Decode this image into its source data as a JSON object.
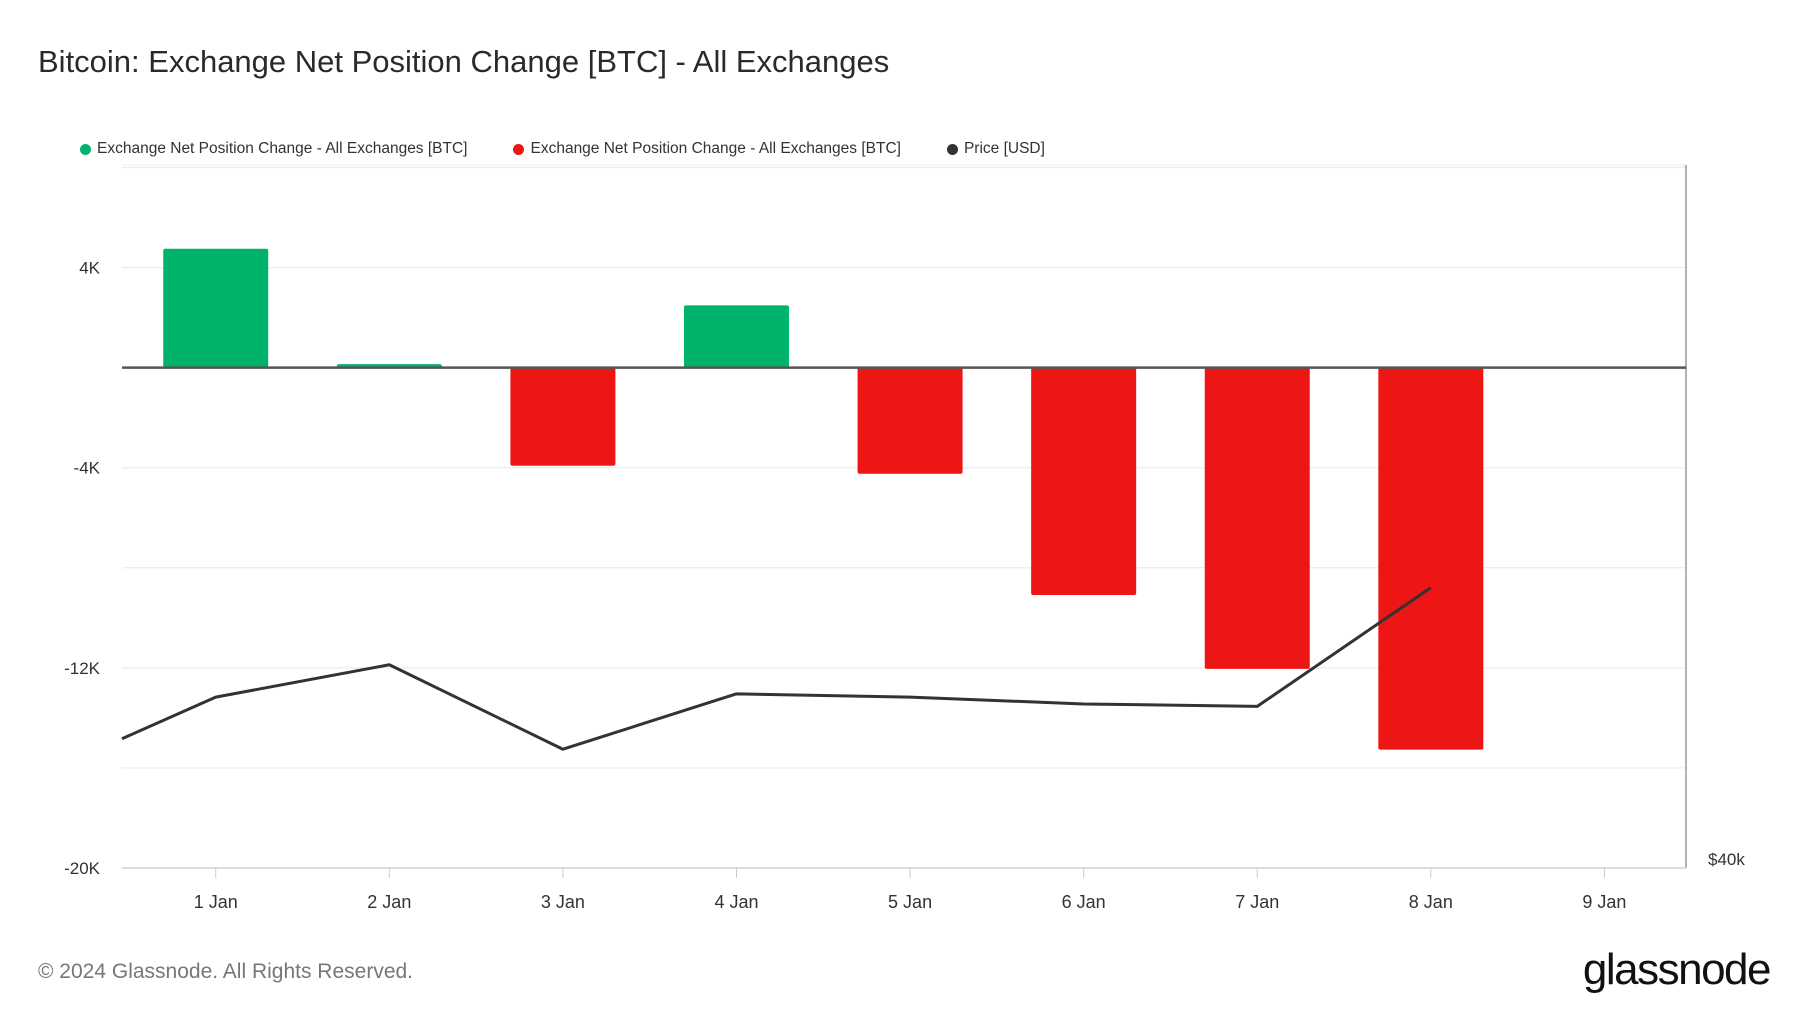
{
  "chart_data": {
    "type": "bar",
    "title": "Bitcoin: Exchange Net Position Change [BTC] - All Exchanges",
    "categories": [
      "1 Jan",
      "2 Jan",
      "3 Jan",
      "4 Jan",
      "5 Jan",
      "6 Jan",
      "7 Jan",
      "8 Jan",
      "9 Jan"
    ],
    "series": [
      {
        "name": "Exchange Net Position Change - All Exchanges [BTC]",
        "kind": "bar",
        "values": [
          4750,
          140,
          -3920,
          2490,
          -4240,
          -9090,
          -12040,
          -15270,
          null
        ]
      },
      {
        "name": "Price [USD]",
        "kind": "line",
        "x": [
          -0.54,
          0,
          1,
          2,
          3,
          4,
          5,
          6,
          7
        ],
        "values": [
          43200,
          44230,
          45030,
          42940,
          44310,
          44230,
          44060,
          44000,
          46940
        ]
      }
    ],
    "legend": [
      {
        "label": "Exchange Net Position Change - All Exchanges [BTC]",
        "color": "#00b36b"
      },
      {
        "label": "Exchange Net Position Change - All Exchanges [BTC]",
        "color": "#ee1515"
      },
      {
        "label": "Price [USD]",
        "color": "#333333"
      }
    ],
    "y_ticks": [
      {
        "value": 4000,
        "label": "4K"
      },
      {
        "value": -4000,
        "label": "-4K"
      },
      {
        "value": -12000,
        "label": "-12K"
      },
      {
        "value": -20000,
        "label": "-20K"
      }
    ],
    "y_gridlines": [
      8000,
      4000,
      0,
      -4000,
      -8000,
      -12000,
      -16000,
      -20000
    ],
    "ylim": [
      -20000,
      8100
    ],
    "y2_ticks": [
      {
        "value": 40000,
        "label": "$40k"
      }
    ],
    "y2lim": [
      40000,
      57400
    ],
    "xlim": [
      -0.54,
      8.47
    ],
    "legend_position": "top-left",
    "colors": {
      "positive": "#00b36b",
      "negative": "#ee1515",
      "line": "#333333",
      "grid": "#ececec",
      "zero": "#555555"
    }
  },
  "footer": "© 2024 Glassnode. All Rights Reserved.",
  "logo": "glassnode"
}
